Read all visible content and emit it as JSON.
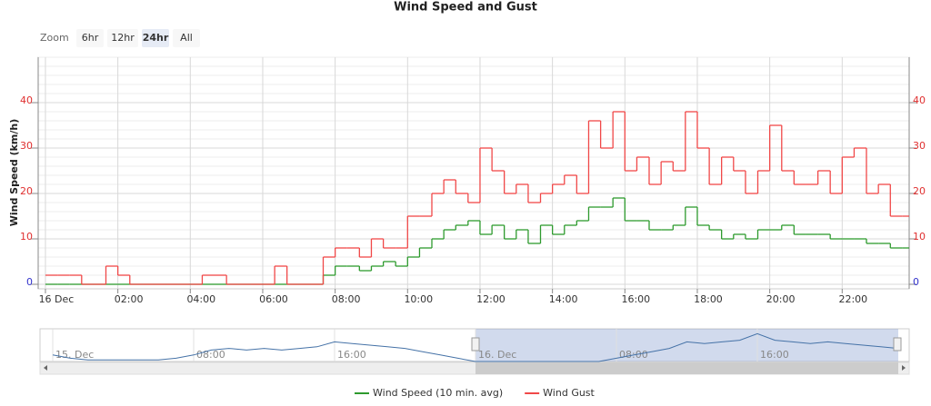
{
  "chart_data": {
    "type": "step-line",
    "title": "Wind Speed and Gust",
    "y_axis_label": "Wind Speed (km/h)",
    "zoom": {
      "label": "Zoom",
      "buttons": [
        "6hr",
        "12hr",
        "24hr",
        "All"
      ],
      "selected": 2
    },
    "xlim": [
      -0.2,
      23.85
    ],
    "xticks": [
      {
        "value": 0,
        "label": "16 Dec"
      },
      {
        "value": 2,
        "label": "02:00"
      },
      {
        "value": 4,
        "label": "04:00"
      },
      {
        "value": 6,
        "label": "06:00"
      },
      {
        "value": 8,
        "label": "08:00"
      },
      {
        "value": 10,
        "label": "10:00"
      },
      {
        "value": 12,
        "label": "12:00"
      },
      {
        "value": 14,
        "label": "14:00"
      },
      {
        "value": 16,
        "label": "16:00"
      },
      {
        "value": 18,
        "label": "18:00"
      },
      {
        "value": 20,
        "label": "20:00"
      },
      {
        "value": 22,
        "label": "22:00"
      }
    ],
    "ylim": [
      -1,
      50
    ],
    "yticks": [
      0,
      10,
      20,
      30,
      40
    ],
    "y2lim": [
      -1,
      50
    ],
    "y2ticks": [
      0,
      10,
      20,
      30,
      40
    ],
    "tick_colors": [
      "#3333cc",
      "#e03030",
      "#e03030",
      "#e03030",
      "#e03030"
    ],
    "grid": true,
    "x": [
      0,
      0.33,
      0.67,
      1,
      1.33,
      1.67,
      2,
      2.33,
      2.67,
      3,
      3.33,
      3.67,
      4,
      4.33,
      4.67,
      5,
      5.33,
      5.67,
      6,
      6.33,
      6.67,
      7,
      7.33,
      7.67,
      8,
      8.33,
      8.67,
      9,
      9.33,
      9.67,
      10,
      10.33,
      10.67,
      11,
      11.33,
      11.67,
      12,
      12.33,
      12.67,
      13,
      13.33,
      13.67,
      14,
      14.33,
      14.67,
      15,
      15.33,
      15.67,
      16,
      16.33,
      16.67,
      17,
      17.33,
      17.67,
      18,
      18.33,
      18.67,
      19,
      19.33,
      19.67,
      20,
      20.33,
      20.67,
      21,
      21.33,
      21.67,
      22,
      22.33,
      22.67,
      23,
      23.33,
      23.67
    ],
    "series": [
      {
        "name": "Wind Speed (10 min. avg)",
        "color": "#2e9a2e",
        "values": [
          0,
          0,
          0,
          0,
          0,
          0,
          0,
          0,
          0,
          0,
          0,
          0,
          0,
          0,
          0,
          0,
          0,
          0,
          0,
          0,
          0,
          0,
          0,
          2,
          4,
          4,
          3,
          4,
          5,
          4,
          6,
          8,
          10,
          12,
          13,
          14,
          11,
          13,
          10,
          12,
          9,
          13,
          11,
          13,
          14,
          17,
          17,
          19,
          14,
          14,
          12,
          12,
          13,
          17,
          13,
          12,
          10,
          11,
          10,
          12,
          12,
          13,
          11,
          11,
          11,
          10,
          10,
          10,
          9,
          9,
          8,
          8
        ]
      },
      {
        "name": "Wind Gust",
        "color": "#f04848",
        "values": [
          2,
          2,
          2,
          0,
          0,
          4,
          2,
          0,
          0,
          0,
          0,
          0,
          0,
          2,
          2,
          0,
          0,
          0,
          0,
          4,
          0,
          0,
          0,
          6,
          8,
          8,
          6,
          10,
          8,
          8,
          15,
          15,
          20,
          23,
          20,
          18,
          30,
          25,
          20,
          22,
          18,
          20,
          22,
          24,
          20,
          36,
          30,
          38,
          25,
          28,
          22,
          27,
          25,
          38,
          30,
          22,
          28,
          25,
          20,
          25,
          35,
          25,
          22,
          22,
          25,
          20,
          28,
          30,
          20,
          22,
          15,
          15
        ]
      }
    ],
    "navigator": {
      "xlim": [
        0,
        48
      ],
      "ylim": [
        0,
        20
      ],
      "xticks": [
        {
          "value": 0,
          "label": "15. Dec"
        },
        {
          "value": 8,
          "label": "08:00"
        },
        {
          "value": 16,
          "label": "16:00"
        },
        {
          "value": 24,
          "label": "16. Dec"
        },
        {
          "value": 32,
          "label": "08:00"
        },
        {
          "value": 40,
          "label": "16:00"
        }
      ],
      "selection": [
        24,
        48
      ],
      "x": [
        0,
        1,
        2,
        3,
        4,
        5,
        6,
        7,
        8,
        9,
        10,
        11,
        12,
        13,
        14,
        15,
        16,
        17,
        18,
        19,
        20,
        21,
        22,
        23,
        24,
        25,
        26,
        27,
        28,
        29,
        30,
        31,
        32,
        33,
        34,
        35,
        36,
        37,
        38,
        39,
        40,
        41,
        42,
        43,
        44,
        45,
        46,
        47,
        48
      ],
      "values": [
        4,
        2,
        1,
        1,
        1,
        1,
        1,
        2,
        4,
        7,
        8,
        7,
        8,
        7,
        8,
        9,
        12,
        11,
        10,
        9,
        8,
        6,
        4,
        2,
        0,
        0,
        0,
        0,
        0,
        0,
        0,
        0,
        2,
        4,
        6,
        8,
        12,
        11,
        12,
        13,
        17,
        13,
        12,
        11,
        12,
        11,
        10,
        9,
        8
      ]
    },
    "legend": "bottom"
  }
}
